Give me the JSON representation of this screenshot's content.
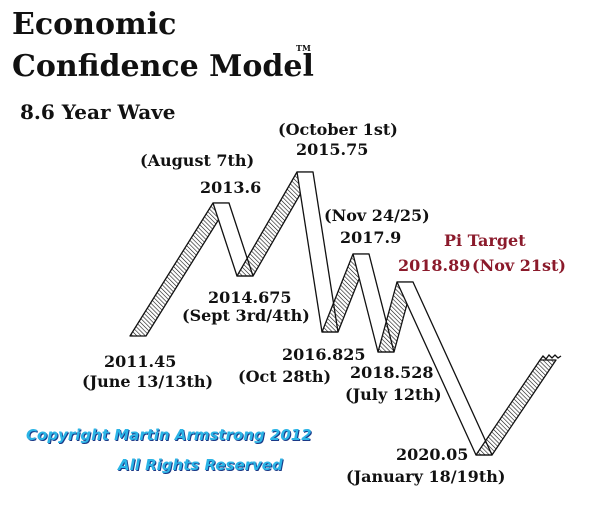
{
  "title": {
    "line1": "Economic",
    "line2": "Confidence Model",
    "trademark": "TM"
  },
  "subtitle": "8.6 Year Wave",
  "points": {
    "p2011_45": {
      "value": "2011.45",
      "date": "(June 13/13th)"
    },
    "p2013_6": {
      "value": "2013.6",
      "date": "(August 7th)"
    },
    "p2014_675": {
      "value": "2014.675",
      "date": "(Sept 3rd/4th)"
    },
    "p2015_75": {
      "value": "2015.75",
      "date": "(October 1st)"
    },
    "p2016_825": {
      "value": "2016.825",
      "date": "(Oct 28th)"
    },
    "p2017_9": {
      "value": "2017.9",
      "date": "(Nov 24/25)"
    },
    "p2018_528": {
      "value": "2018.528",
      "date": "(July 12th)"
    },
    "p2018_89": {
      "heading": "Pi Target",
      "value": "2018.89",
      "date": "(Nov 21st)"
    },
    "p2020_05": {
      "value": "2020.05",
      "date": "(January 18/19th)"
    }
  },
  "copyright": {
    "line1": "Copyright Martin Armstrong 2012",
    "line2": "All Rights Reserved"
  },
  "colors": {
    "ink": "#111111",
    "pi_target": "#8b1a2b",
    "copyright_fill": "#2bb4e6",
    "copyright_shadow": "#1a3a88"
  }
}
